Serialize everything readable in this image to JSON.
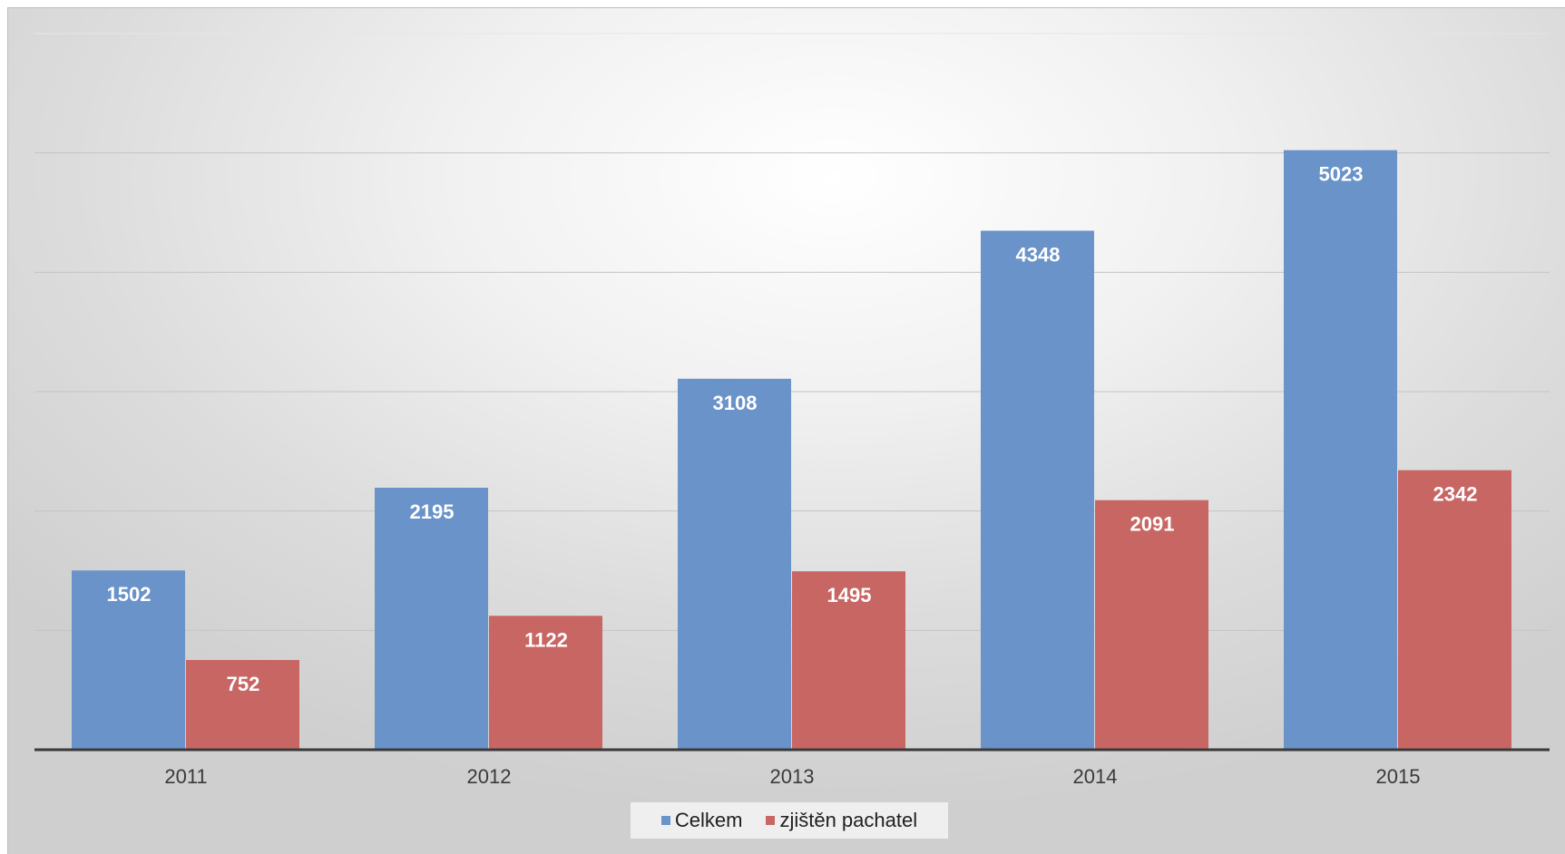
{
  "chart_data": {
    "type": "bar",
    "categories": [
      "2011",
      "2012",
      "2013",
      "2014",
      "2015"
    ],
    "series": [
      {
        "name": "Celkem",
        "values": [
          1502,
          2195,
          3108,
          4348,
          5023
        ],
        "color": "#6993c9"
      },
      {
        "name": "zjištěn pachatel",
        "values": [
          752,
          1122,
          1495,
          2091,
          2342
        ],
        "color": "#c86664"
      }
    ],
    "ylim": [
      0,
      6000
    ],
    "gridlines": [
      0,
      1000,
      2000,
      3000,
      4000,
      5000,
      6000
    ],
    "grid": true,
    "y_tick_labels_visible": false,
    "data_labels": true,
    "legend_position": "bottom",
    "title": "",
    "xlabel": "",
    "ylabel": ""
  }
}
